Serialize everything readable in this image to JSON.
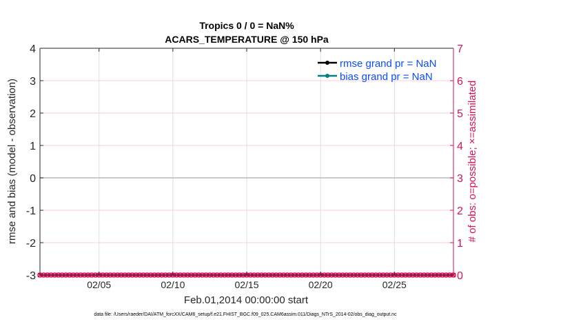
{
  "chart_data": {
    "type": "line",
    "title": [
      "Tropics 0 / 0 = NaN%",
      "ACARS_TEMPERATURE @ 150 hPa"
    ],
    "xlabel": "Feb.01,2014 00:00:00 start",
    "ylabel": "rmse and bias (model - observation)",
    "y2label": "# of obs: o=possible; ×=assimilated",
    "xlim": [
      "2014-02-01",
      "2014-03-01"
    ],
    "ylim": [
      -3,
      4
    ],
    "y2lim": [
      0,
      7
    ],
    "x_ticks": [
      {
        "date": "2014-02-05",
        "label": "02/05"
      },
      {
        "date": "2014-02-10",
        "label": "02/10"
      },
      {
        "date": "2014-02-15",
        "label": "02/15"
      },
      {
        "date": "2014-02-20",
        "label": "02/20"
      },
      {
        "date": "2014-02-25",
        "label": "02/25"
      }
    ],
    "y_ticks": [
      "-3",
      "-2",
      "-1",
      "0",
      "1",
      "2",
      "3",
      "4"
    ],
    "y2_ticks": [
      "0",
      "1",
      "2",
      "3",
      "4",
      "5",
      "6",
      "7"
    ],
    "grid": true,
    "legend_position": "top-right",
    "series": [
      {
        "name": "rmse grand pr = NaN",
        "color": "#000000",
        "values": "NaN"
      },
      {
        "name": "bias grand pr = NaN",
        "color": "#008080",
        "values": "NaN"
      },
      {
        "name": "obs possible",
        "color": "#d6105a",
        "marker": "o",
        "time_step_hours": 6,
        "value": 0
      },
      {
        "name": "obs assimilated",
        "color": "#d6105a",
        "marker": "x",
        "time_step_hours": 6,
        "value": 0
      }
    ],
    "zero_line": 0,
    "colors": {
      "left_axis": "#262626",
      "right_axis": "#d6105a",
      "legend_text": "#0a4cff"
    },
    "footnote": "data file: /Users/raeder/DAI/ATM_forcXX/CAM6_setup/f.e21.FHIST_BGC.f09_025.CAM6assim.011/Diags_NTrS_2014-02/obs_diag_output.nc"
  }
}
